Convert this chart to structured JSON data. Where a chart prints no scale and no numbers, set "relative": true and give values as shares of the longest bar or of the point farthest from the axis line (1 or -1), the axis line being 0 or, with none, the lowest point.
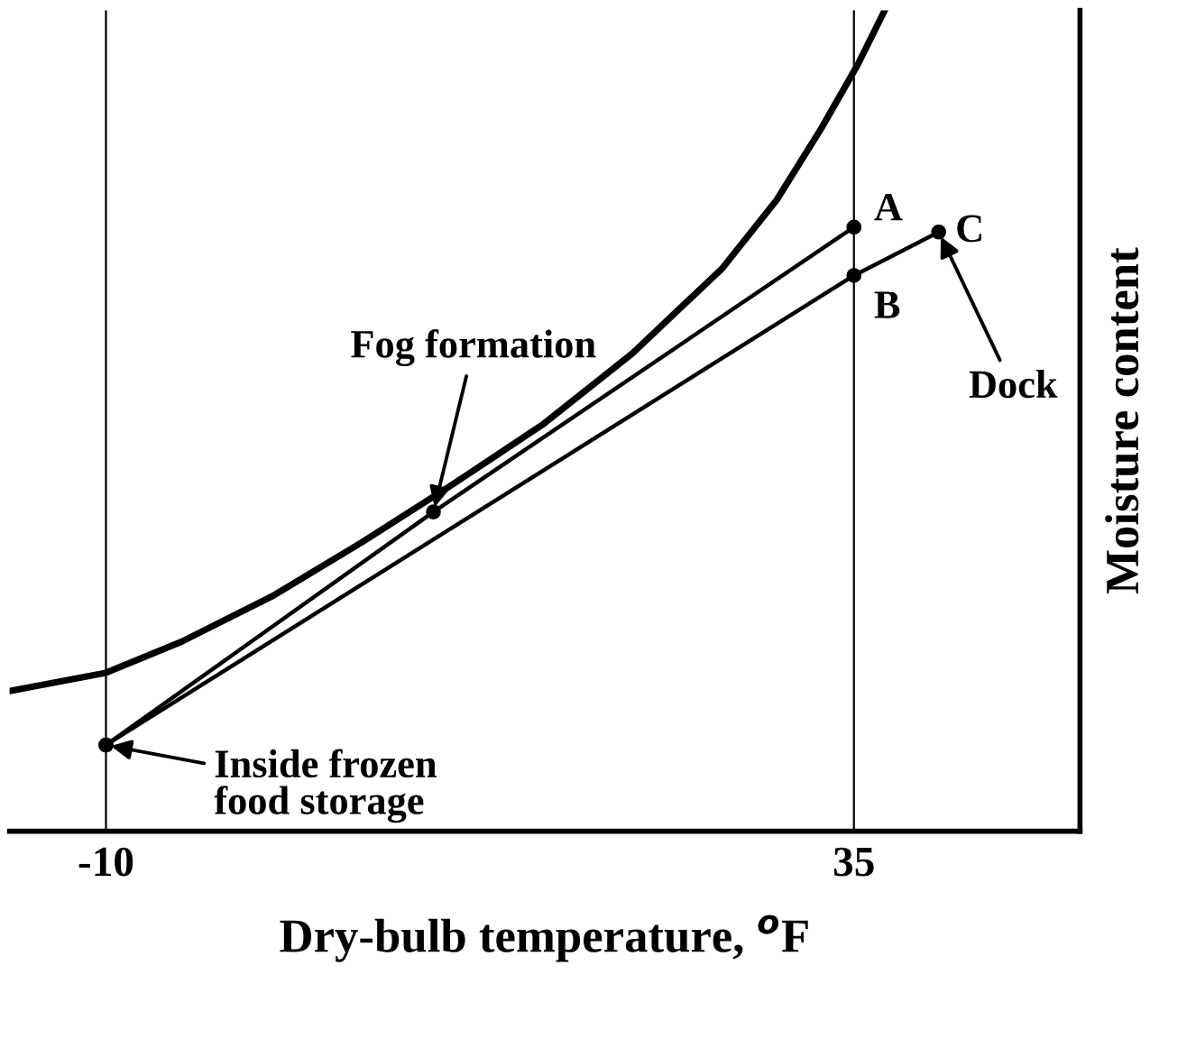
{
  "chart_data": {
    "type": "line",
    "relative": true,
    "xlabel": "Dry-bulb temperature, $^{o}$F",
    "ylabel": "Moisture content",
    "xlim": [
      -15.8,
      48.6
    ],
    "xticks": [
      -10,
      35
    ],
    "tick_labels": "x",
    "grid": false,
    "legend": false,
    "series": [
      {
        "color": "#000000",
        "marker": "none",
        "x": [
          -15.75,
          -10,
          -5.44,
          -0.02,
          5.4,
          10.82,
          16.25,
          21.67,
          27.09,
          30.35,
          33.06,
          35.23,
          36.85
        ],
        "values": [
          0.171,
          0.193,
          0.231,
          0.286,
          0.352,
          0.422,
          0.495,
          0.582,
          0.686,
          0.769,
          0.857,
          0.934,
          1.0
        ]
      },
      {
        "color": "#000000",
        "marker": "circle",
        "x": [
          -10,
          9.7,
          35
        ],
        "values": [
          0.105,
          0.389,
          0.736
        ]
      },
      {
        "color": "#000000",
        "marker": "circle",
        "x": [
          -10,
          35,
          40.1
        ],
        "values": [
          0.105,
          0.677,
          0.73
        ]
      }
    ],
    "ref_lines": [
      {
        "axis": "x",
        "value": -10,
        "color": "#000000"
      },
      {
        "axis": "x",
        "value": 35,
        "color": "#000000"
      }
    ],
    "annotations": [
      {
        "text": "A",
        "x": 35,
        "y": 0.736
      },
      {
        "text": "B",
        "x": 35,
        "y": 0.677
      },
      {
        "text": "C",
        "x": 40.1,
        "y": 0.73
      },
      {
        "text": "Fog formation",
        "x": 9.7,
        "y": 0.389
      },
      {
        "text": "Inside frozen\nfood storage",
        "x": -10,
        "y": 0.105
      },
      {
        "text": "Dock",
        "x": 40.1,
        "y": 0.73
      }
    ]
  }
}
